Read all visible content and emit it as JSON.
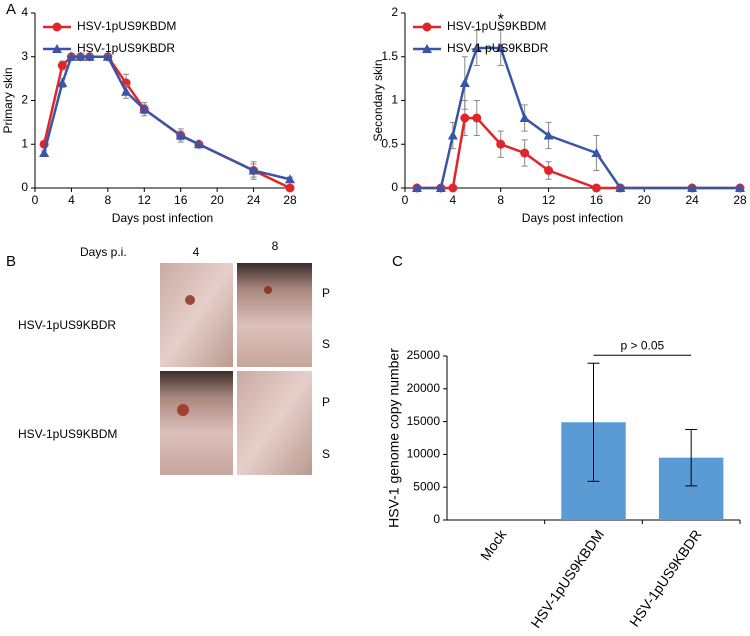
{
  "panel_letters": [
    "A",
    "B",
    "C"
  ],
  "chart_data": [
    {
      "type": "line",
      "ylabel": "Primary skin",
      "xlabel": "Days post infection",
      "x": [
        1,
        3,
        4,
        5,
        6,
        8,
        10,
        12,
        16,
        18,
        24,
        28
      ],
      "xlim": [
        0,
        28
      ],
      "xticks": [
        0,
        4,
        8,
        12,
        16,
        20,
        24,
        28
      ],
      "ylim": [
        0,
        4
      ],
      "yticks": [
        0,
        1,
        2,
        3,
        4
      ],
      "legend": "upper left",
      "series": [
        {
          "name": "HSV-1pUS9KBDM",
          "color": "#e0262b",
          "marker": "circle",
          "values": [
            1,
            2.8,
            3,
            3,
            3,
            3,
            2.4,
            1.8,
            1.2,
            1.0,
            0.4,
            0.0
          ],
          "errors": [
            0.05,
            0.1,
            0.05,
            0.05,
            0.05,
            0.05,
            0.2,
            0.1,
            0.15,
            0.05,
            0.2,
            0.05
          ]
        },
        {
          "name": "HSV-1pUS9KBDR",
          "color": "#3a55a5",
          "marker": "triangle",
          "values": [
            0.8,
            2.4,
            3,
            3,
            3,
            3,
            2.2,
            1.8,
            1.2,
            1.0,
            0.4,
            0.2
          ],
          "errors": [
            0.05,
            0.1,
            0.05,
            0.05,
            0.05,
            0.05,
            0.15,
            0.15,
            0.1,
            0.05,
            0.15,
            0.05
          ]
        }
      ]
    },
    {
      "type": "line",
      "ylabel": "Secondary skin",
      "xlabel": "Days post infection",
      "annotation": "*",
      "x": [
        1,
        3,
        4,
        5,
        6,
        8,
        10,
        12,
        16,
        18,
        24,
        28
      ],
      "xlim": [
        0,
        28
      ],
      "xticks": [
        0,
        4,
        8,
        12,
        16,
        20,
        24,
        28
      ],
      "ylim": [
        0,
        2
      ],
      "yticks": [
        0,
        0.5,
        1,
        1.5,
        2
      ],
      "legend": "upper left",
      "series": [
        {
          "name": "HSV-1pUS9KBDM",
          "color": "#e0262b",
          "marker": "circle",
          "values": [
            0,
            0,
            0,
            0.8,
            0.8,
            0.5,
            0.4,
            0.2,
            0,
            0,
            0,
            0
          ],
          "errors": [
            0,
            0,
            0,
            0.2,
            0.2,
            0.15,
            0.15,
            0.1,
            0,
            0,
            0,
            0
          ]
        },
        {
          "name": "HSV-1 pUS9KBDR",
          "color": "#3a55a5",
          "marker": "triangle",
          "values": [
            0,
            0,
            0.6,
            1.2,
            1.6,
            1.6,
            0.8,
            0.6,
            0.4,
            0,
            0,
            0
          ],
          "errors": [
            0,
            0,
            0.15,
            0.3,
            0.2,
            0.2,
            0.15,
            0.15,
            0.2,
            0,
            0,
            0
          ]
        }
      ]
    },
    {
      "type": "bar",
      "ylabel": "HSV-1 genome copy number",
      "annotation": "p > 0.05",
      "categories": [
        "Mock",
        "HSV-1pUS9KBDM",
        "HSV-1pUS9KBDR"
      ],
      "values": [
        0,
        14900,
        9500
      ],
      "errors": [
        null,
        9000,
        4300
      ],
      "color": "#5b9bd5",
      "ylim": [
        0,
        25000
      ],
      "yticks": [
        0,
        5000,
        10000,
        15000,
        20000,
        25000
      ]
    }
  ],
  "photo_panel": {
    "header": "Days p.i.",
    "columns": [
      "4",
      "8"
    ],
    "rows": [
      {
        "label": "HSV-1pUS9KBDR",
        "marks": [
          "P",
          "S"
        ]
      },
      {
        "label": "HSV-1pUS9KBDM",
        "marks": [
          "P",
          "S"
        ]
      }
    ]
  }
}
